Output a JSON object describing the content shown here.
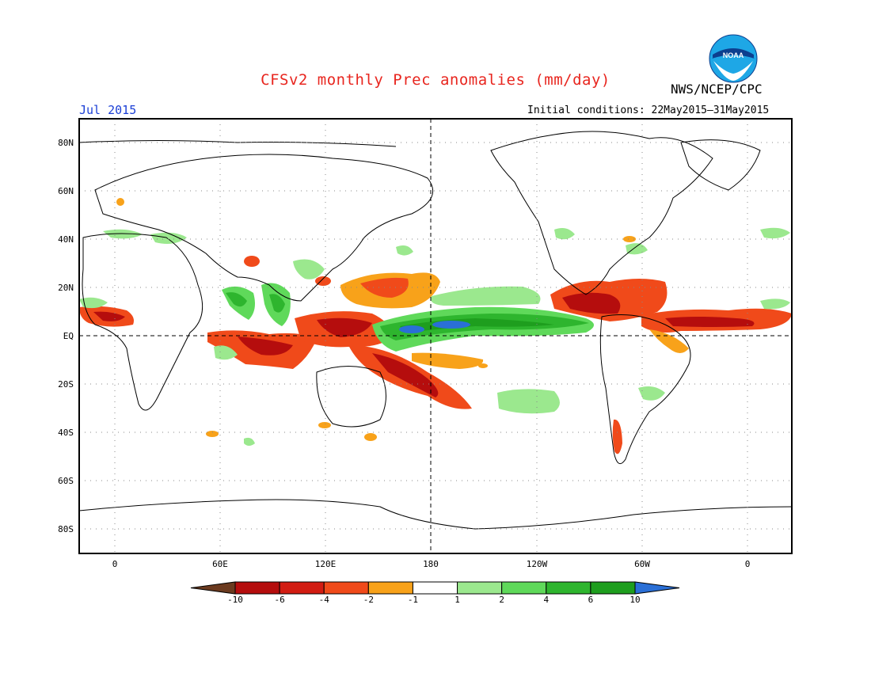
{
  "title": "CFSv2 monthly Prec anomalies (mm/day)",
  "agency": "NWS/NCEP/CPC",
  "logo_text": "NOAA",
  "valid_month": "Jul 2015",
  "initial_conditions": "Initial conditions: 22May2015–31May2015",
  "lat_labels": [
    "80N",
    "60N",
    "40N",
    "20N",
    "EQ",
    "20S",
    "40S",
    "60S",
    "80S"
  ],
  "lon_labels": [
    "0",
    "60E",
    "120E",
    "180",
    "120W",
    "60W",
    "0"
  ],
  "colorbar": {
    "labels": [
      "-10",
      "-6",
      "-4",
      "-2",
      "-1",
      "1",
      "2",
      "4",
      "6",
      "10"
    ],
    "colors": [
      "#6b3a1f",
      "#b50d0d",
      "#d21c12",
      "#f04a1a",
      "#f8a21a",
      "#ffffff",
      "#9be88e",
      "#5fd95a",
      "#2eb52e",
      "#1e9e1e",
      "#2a6fd6"
    ]
  },
  "colors": {
    "title": "#e8261f",
    "month": "#1b3fd6",
    "dry_strong": "#d21c12",
    "dry": "#f04a1a",
    "dry_light": "#f8a21a",
    "wet_light": "#9be88e",
    "wet": "#5fd95a",
    "wet_strong": "#1e9e1e",
    "wet_extreme": "#2a6fd6"
  }
}
